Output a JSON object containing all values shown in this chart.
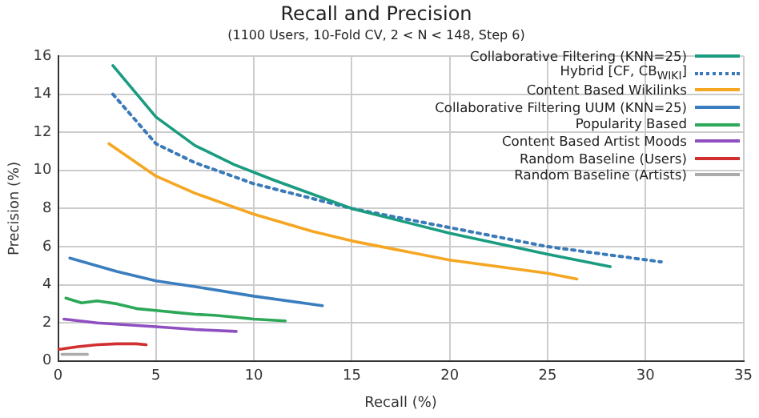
{
  "chart_data": {
    "type": "line",
    "title": "Recall and Precision",
    "subtitle": "(1100 Users, 10-Fold CV, 2 < N < 148, Step 6)",
    "xlabel": "Recall (%)",
    "ylabel": "Precision (%)",
    "xlim": [
      0,
      35
    ],
    "xticks": [
      0,
      5,
      10,
      15,
      20,
      25,
      30,
      35
    ],
    "ylim": [
      0,
      16
    ],
    "yticks": [
      0,
      2,
      4,
      6,
      8,
      10,
      12,
      14,
      16
    ],
    "grid": true,
    "legend": "top right",
    "marker": "none",
    "series": [
      {
        "name": "Collaborative Filtering (KNN=25)",
        "color": "#1a9c80",
        "line_style": "solid",
        "x": [
          2.8,
          5,
          7,
          9,
          11,
          15,
          20,
          25,
          28.2
        ],
        "values": [
          15.5,
          12.8,
          11.3,
          10.3,
          9.5,
          8.0,
          6.7,
          5.6,
          4.95
        ]
      },
      {
        "name": "Hybrid [CF, CB$_{WIKI}$]",
        "color": "#3a7ab8",
        "line_style": "dotted",
        "x": [
          2.8,
          5,
          7,
          10,
          15,
          20,
          25,
          30.8
        ],
        "values": [
          14.0,
          11.4,
          10.4,
          9.3,
          8.0,
          7.0,
          6.0,
          5.2
        ]
      },
      {
        "name": "Content Based Wikilinks",
        "color": "#f5a623",
        "line_style": "solid",
        "x": [
          2.6,
          5,
          7,
          10,
          13,
          15,
          20,
          25,
          26.5
        ],
        "values": [
          11.4,
          9.7,
          8.8,
          7.7,
          6.8,
          6.3,
          5.3,
          4.6,
          4.3
        ]
      },
      {
        "name": "Collaborative Filtering UUM (KNN=25)",
        "color": "#3a7ebf",
        "line_style": "solid",
        "x": [
          0.6,
          3,
          5,
          7,
          10,
          13.5
        ],
        "values": [
          5.4,
          4.7,
          4.2,
          3.9,
          3.4,
          2.9
        ]
      },
      {
        "name": "Popularity Based",
        "color": "#2ca858",
        "line_style": "solid",
        "x": [
          0.4,
          1.2,
          2,
          3,
          4,
          5,
          6,
          7,
          8,
          9,
          10,
          11.6
        ],
        "values": [
          3.3,
          3.05,
          3.15,
          3.0,
          2.75,
          2.65,
          2.55,
          2.45,
          2.4,
          2.3,
          2.2,
          2.1
        ]
      },
      {
        "name": "Content Based Artist Moods",
        "color": "#8e4fc0",
        "line_style": "solid",
        "x": [
          0.3,
          2,
          5,
          7,
          9.1
        ],
        "values": [
          2.2,
          2.0,
          1.8,
          1.65,
          1.55
        ]
      },
      {
        "name": "Random Baseline (Users)",
        "color": "#d13030",
        "line_style": "solid",
        "x": [
          0,
          1,
          2,
          3,
          4,
          4.5
        ],
        "values": [
          0.6,
          0.75,
          0.85,
          0.9,
          0.9,
          0.85
        ]
      },
      {
        "name": "Random Baseline (Artists)",
        "color": "#aaaaaa",
        "line_style": "solid",
        "x": [
          0.2,
          1.5
        ],
        "values": [
          0.35,
          0.35
        ]
      }
    ]
  }
}
